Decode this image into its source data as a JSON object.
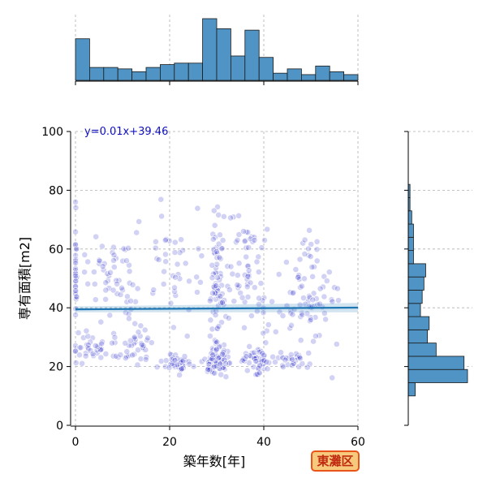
{
  "chart_data": {
    "type": "scatter",
    "xlabel": "築年数[年]",
    "ylabel": "専有面積[m2]",
    "xlim": [
      0,
      60
    ],
    "ylim": [
      0,
      100
    ],
    "x_ticks": [
      0,
      20,
      40,
      60
    ],
    "y_ticks": [
      0,
      20,
      40,
      60,
      80,
      100
    ],
    "grid": true,
    "annotation": "y=0.01x+39.46",
    "badge": "東灘区",
    "regression": {
      "slope": 0.01,
      "intercept": 39.46,
      "color": "#1f77b4"
    },
    "point_color": "#3333cc",
    "hist_color": "#4f94c4",
    "clusters": [
      {
        "x_center": 3,
        "x_spread": 4,
        "y_center": 26,
        "y_spread": 5,
        "count": 35
      },
      {
        "x_center": 12,
        "x_spread": 6,
        "y_center": 27,
        "y_spread": 6,
        "count": 45
      },
      {
        "x_center": 22,
        "x_spread": 3,
        "y_center": 21,
        "y_spread": 3,
        "count": 40
      },
      {
        "x_center": 30,
        "x_spread": 3,
        "y_center": 22,
        "y_spread": 5,
        "count": 80
      },
      {
        "x_center": 38,
        "x_spread": 3,
        "y_center": 22,
        "y_spread": 5,
        "count": 55
      },
      {
        "x_center": 30,
        "x_spread": 1.5,
        "y_center": 50,
        "y_spread": 20,
        "count": 70
      },
      {
        "x_center": 36,
        "x_spread": 5,
        "y_center": 55,
        "y_spread": 20,
        "count": 70
      },
      {
        "x_center": 8,
        "x_spread": 7,
        "y_center": 50,
        "y_spread": 12,
        "count": 55
      },
      {
        "x_center": 20,
        "x_spread": 8,
        "y_center": 55,
        "y_spread": 20,
        "count": 45
      },
      {
        "x_center": 50,
        "x_spread": 6,
        "y_center": 45,
        "y_spread": 18,
        "count": 85
      },
      {
        "x_center": 46,
        "x_spread": 4,
        "y_center": 22,
        "y_spread": 4,
        "count": 30
      },
      {
        "x_center": 0,
        "x_spread": 0.3,
        "y_center": 50,
        "y_spread": 18,
        "count": 30
      }
    ],
    "x_hist": {
      "bin_edges": [
        0,
        3,
        6,
        9,
        12,
        15,
        18,
        21,
        24,
        27,
        30,
        33,
        36,
        39,
        42,
        45,
        48,
        51,
        54,
        57,
        60
      ],
      "counts": [
        29,
        9,
        9,
        8,
        6,
        9,
        11,
        12,
        12,
        43,
        36,
        17,
        35,
        16,
        5,
        8,
        4,
        10,
        6,
        4
      ]
    },
    "y_hist": {
      "bin_edges": [
        10,
        14.5,
        19,
        23.5,
        28,
        32.5,
        37,
        41.5,
        46,
        50.5,
        55,
        59.5,
        64,
        68.5,
        73,
        77.5,
        82,
        86.5
      ],
      "counts": [
        4,
        34,
        32,
        16,
        11,
        12,
        7,
        8,
        9,
        10,
        3,
        3,
        3,
        2,
        1,
        1,
        0
      ]
    }
  }
}
